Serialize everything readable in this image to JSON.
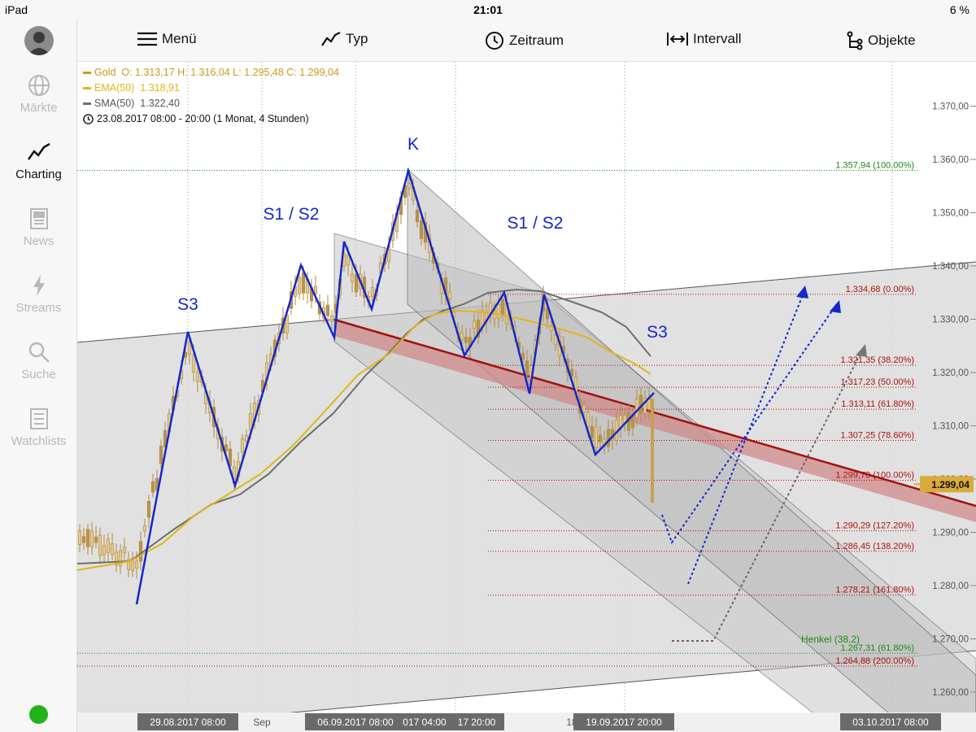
{
  "status_bar": {
    "device": "iPad",
    "time": "21:01",
    "battery": "6 %"
  },
  "sidebar": {
    "items": [
      {
        "label": "Märkte",
        "icon": "globe-icon"
      },
      {
        "label": "Charting",
        "icon": "chart-icon"
      },
      {
        "label": "News",
        "icon": "news-icon"
      },
      {
        "label": "Streams",
        "icon": "lightning-icon"
      },
      {
        "label": "Suche",
        "icon": "search-icon"
      },
      {
        "label": "Watchlists",
        "icon": "watchlist-icon"
      }
    ]
  },
  "toolbar": {
    "menu": "Menü",
    "type": "Typ",
    "period": "Zeitraum",
    "interval": "Intervall",
    "objects": "Objekte"
  },
  "legend": {
    "instrument": "Gold",
    "ohlc": "O: 1.313,17   H: 1.316,04   L: 1.295,48   C: 1.299,04",
    "ema": "EMA(50)",
    "ema_value": "1.318,91",
    "sma": "SMA(50)",
    "sma_value": "1.322,40",
    "range": "23.08.2017 08:00 - 20:00   (1 Monat, 4 Stunden)"
  },
  "annotations": {
    "s3_left": "S3",
    "s12_left": "S1 / S2",
    "k": "K",
    "s12_right": "S1 / S2",
    "s3_right": "S3",
    "henkel": "Henkel (38,2)"
  },
  "fib_levels": [
    {
      "label": "1.357,94 (100.00%)",
      "price": 1357.94,
      "color": "#1a8a1a"
    },
    {
      "label": "1.334,68 (0.00%)",
      "price": 1334.68,
      "color": "#b01010"
    },
    {
      "label": "1.321,35 (38.20%)",
      "price": 1321.35,
      "color": "#b01010"
    },
    {
      "label": "1.317,23 (50.00%)",
      "price": 1317.23,
      "color": "#b01010"
    },
    {
      "label": "1.313,11 (61.80%)",
      "price": 1313.11,
      "color": "#b01010"
    },
    {
      "label": "1.307,25 (78.60%)",
      "price": 1307.25,
      "color": "#b01010"
    },
    {
      "label": "1.299,78 (100.00%)",
      "price": 1299.78,
      "color": "#b01010"
    },
    {
      "label": "1.290,29 (127.20%)",
      "price": 1290.29,
      "color": "#b01010"
    },
    {
      "label": "1.286,45 (138.20%)",
      "price": 1286.45,
      "color": "#b01010"
    },
    {
      "label": "1.278,21 (161.80%)",
      "price": 1278.21,
      "color": "#b01010"
    },
    {
      "label": "1.267,31 (61.80%)",
      "price": 1267.31,
      "color": "#1a8a1a"
    },
    {
      "label": "1.264,88 (200.00%)",
      "price": 1264.88,
      "color": "#b01010"
    }
  ],
  "y_axis": {
    "ticks": [
      "1.370,00",
      "1.360,00",
      "1.350,00",
      "1.340,00",
      "1.330,00",
      "1.320,00",
      "1.310,00",
      "1.300,00",
      "1.290,00",
      "1.280,00",
      "1.270,00",
      "1.260,00"
    ],
    "current_price": "1.299,04"
  },
  "x_axis": {
    "labels": [
      "29.08.2017 08:00",
      "Sep",
      "06.09.2017 08:00",
      "017 04:00",
      "17 20:00",
      "18",
      "19.09.2017 20:00",
      "03.10.2017 08:00"
    ]
  },
  "colors": {
    "pattern": "#1428c8",
    "ema": "#e0b61a",
    "sma": "#6e6e6e",
    "candle": "#c8a050",
    "channel": "#a01010",
    "background": "#e6e6e6"
  }
}
